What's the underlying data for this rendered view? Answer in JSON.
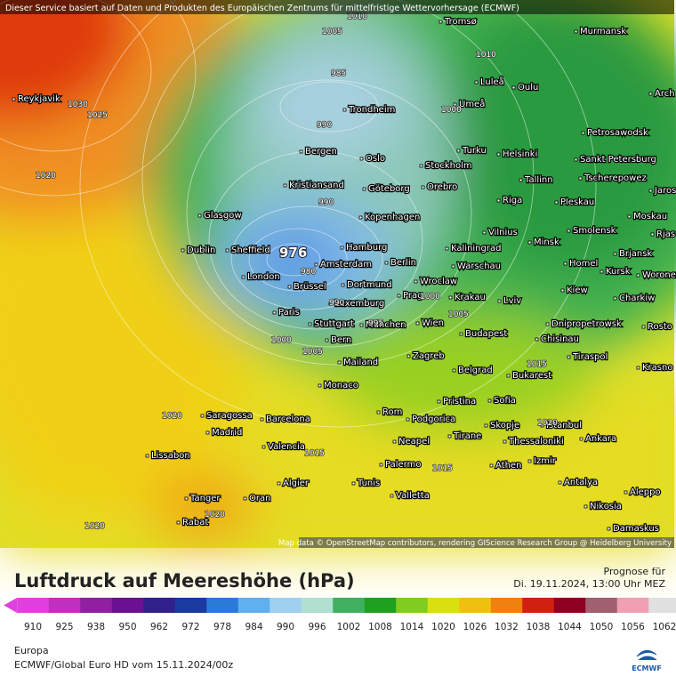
{
  "header": {
    "notice": "Dieser Service basiert auf Daten und Produkten des Europäischen Zentrums für mittelfristige Wettervorhersage (ECMWF)"
  },
  "map": {
    "low_center": 976,
    "cities": [
      "Tromsø",
      "Murmansk",
      "Luleå",
      "Oulu",
      "Arch",
      "Reykjavik",
      "Trondheim",
      "Umeå",
      "Petrosawodsk",
      "Bergen",
      "Turku",
      "Helsinki",
      "Sankt Petersburg",
      "Oslo",
      "Stockholm",
      "Tallinn",
      "Tscherepowez",
      "Kristiansand",
      "Göteborg",
      "Orebro",
      "Jaros",
      "Riga",
      "Pleskau",
      "Glasgow",
      "Kopenhagen",
      "Moskau",
      "Vilnius",
      "Smolensk",
      "Minsk",
      "Rjas",
      "Dublin",
      "Sheffield",
      "Hamburg",
      "Kaliningrad",
      "Berlin",
      "Amsterdam",
      "Brjansk",
      "Warschau",
      "Homel",
      "Kursk",
      "Woronez",
      "London",
      "Brüssel",
      "Dortmund",
      "Wroclaw",
      "Krakau",
      "Kiew",
      "Paris",
      "Luxemburg",
      "Prag",
      "Lviv",
      "Charkiw",
      "Stuttgart",
      "München",
      "Wien",
      "Dnipropetrowsk",
      "Budapest",
      "Rosto",
      "Bern",
      "Chisinau",
      "Mailand",
      "Zagreb",
      "Tiraspol",
      "Krasno",
      "Belgrad",
      "Bukarest",
      "Monaco",
      "Pristina",
      "Sofia",
      "Rom",
      "Podgorica",
      "Saragossa",
      "Barcelona",
      "Madrid",
      "Skopje",
      "Istanbul",
      "Ankara",
      "Neapel",
      "Tirane",
      "Thessaloniki",
      "Valencia",
      "Lissabon",
      "Izmir",
      "Palermo",
      "Athen",
      "Algier",
      "Tunis",
      "Antalya",
      "Aleppo",
      "Tanger",
      "Oran",
      "Valletta",
      "Nikosia",
      "Rabat",
      "Damaskus"
    ],
    "isobar_labels": [
      1010,
      1005,
      1010,
      985,
      1030,
      1025,
      990,
      1000,
      1020,
      990,
      980,
      990,
      995,
      1000,
      1005,
      1000,
      1005,
      1015,
      1020,
      1015,
      1015,
      1020,
      1020,
      1020
    ],
    "attribution": "Map data © OpenStreetMap contributors, rendering GIScience Research Group @ Heidelberg University"
  },
  "legend": {
    "title": "Luftdruck auf Meereshöhe (hPa)",
    "forecast_label": "Prognose für",
    "forecast_time": "Di. 19.11.2024, 13:00 Uhr MEZ",
    "scale": [
      910,
      925,
      938,
      950,
      962,
      972,
      978,
      984,
      990,
      996,
      1002,
      1008,
      1014,
      1020,
      1026,
      1032,
      1038,
      1044,
      1050,
      1056,
      1062
    ],
    "colors": [
      "#e040e0",
      "#c030c0",
      "#9020a0",
      "#6a1090",
      "#30208a",
      "#1a3aa0",
      "#2a7ad8",
      "#60b0f0",
      "#a0d0f0",
      "#b0e0d0",
      "#40b060",
      "#20a020",
      "#80cc20",
      "#d8e010",
      "#f0c010",
      "#f08010",
      "#d02010",
      "#900020",
      "#a06070",
      "#f0a0b0",
      "#e0e0e0"
    ]
  },
  "footer": {
    "region": "Europa",
    "model": "ECMWF/Global Euro HD vom  15.11.2024/00z",
    "logo": "ECMWF"
  }
}
